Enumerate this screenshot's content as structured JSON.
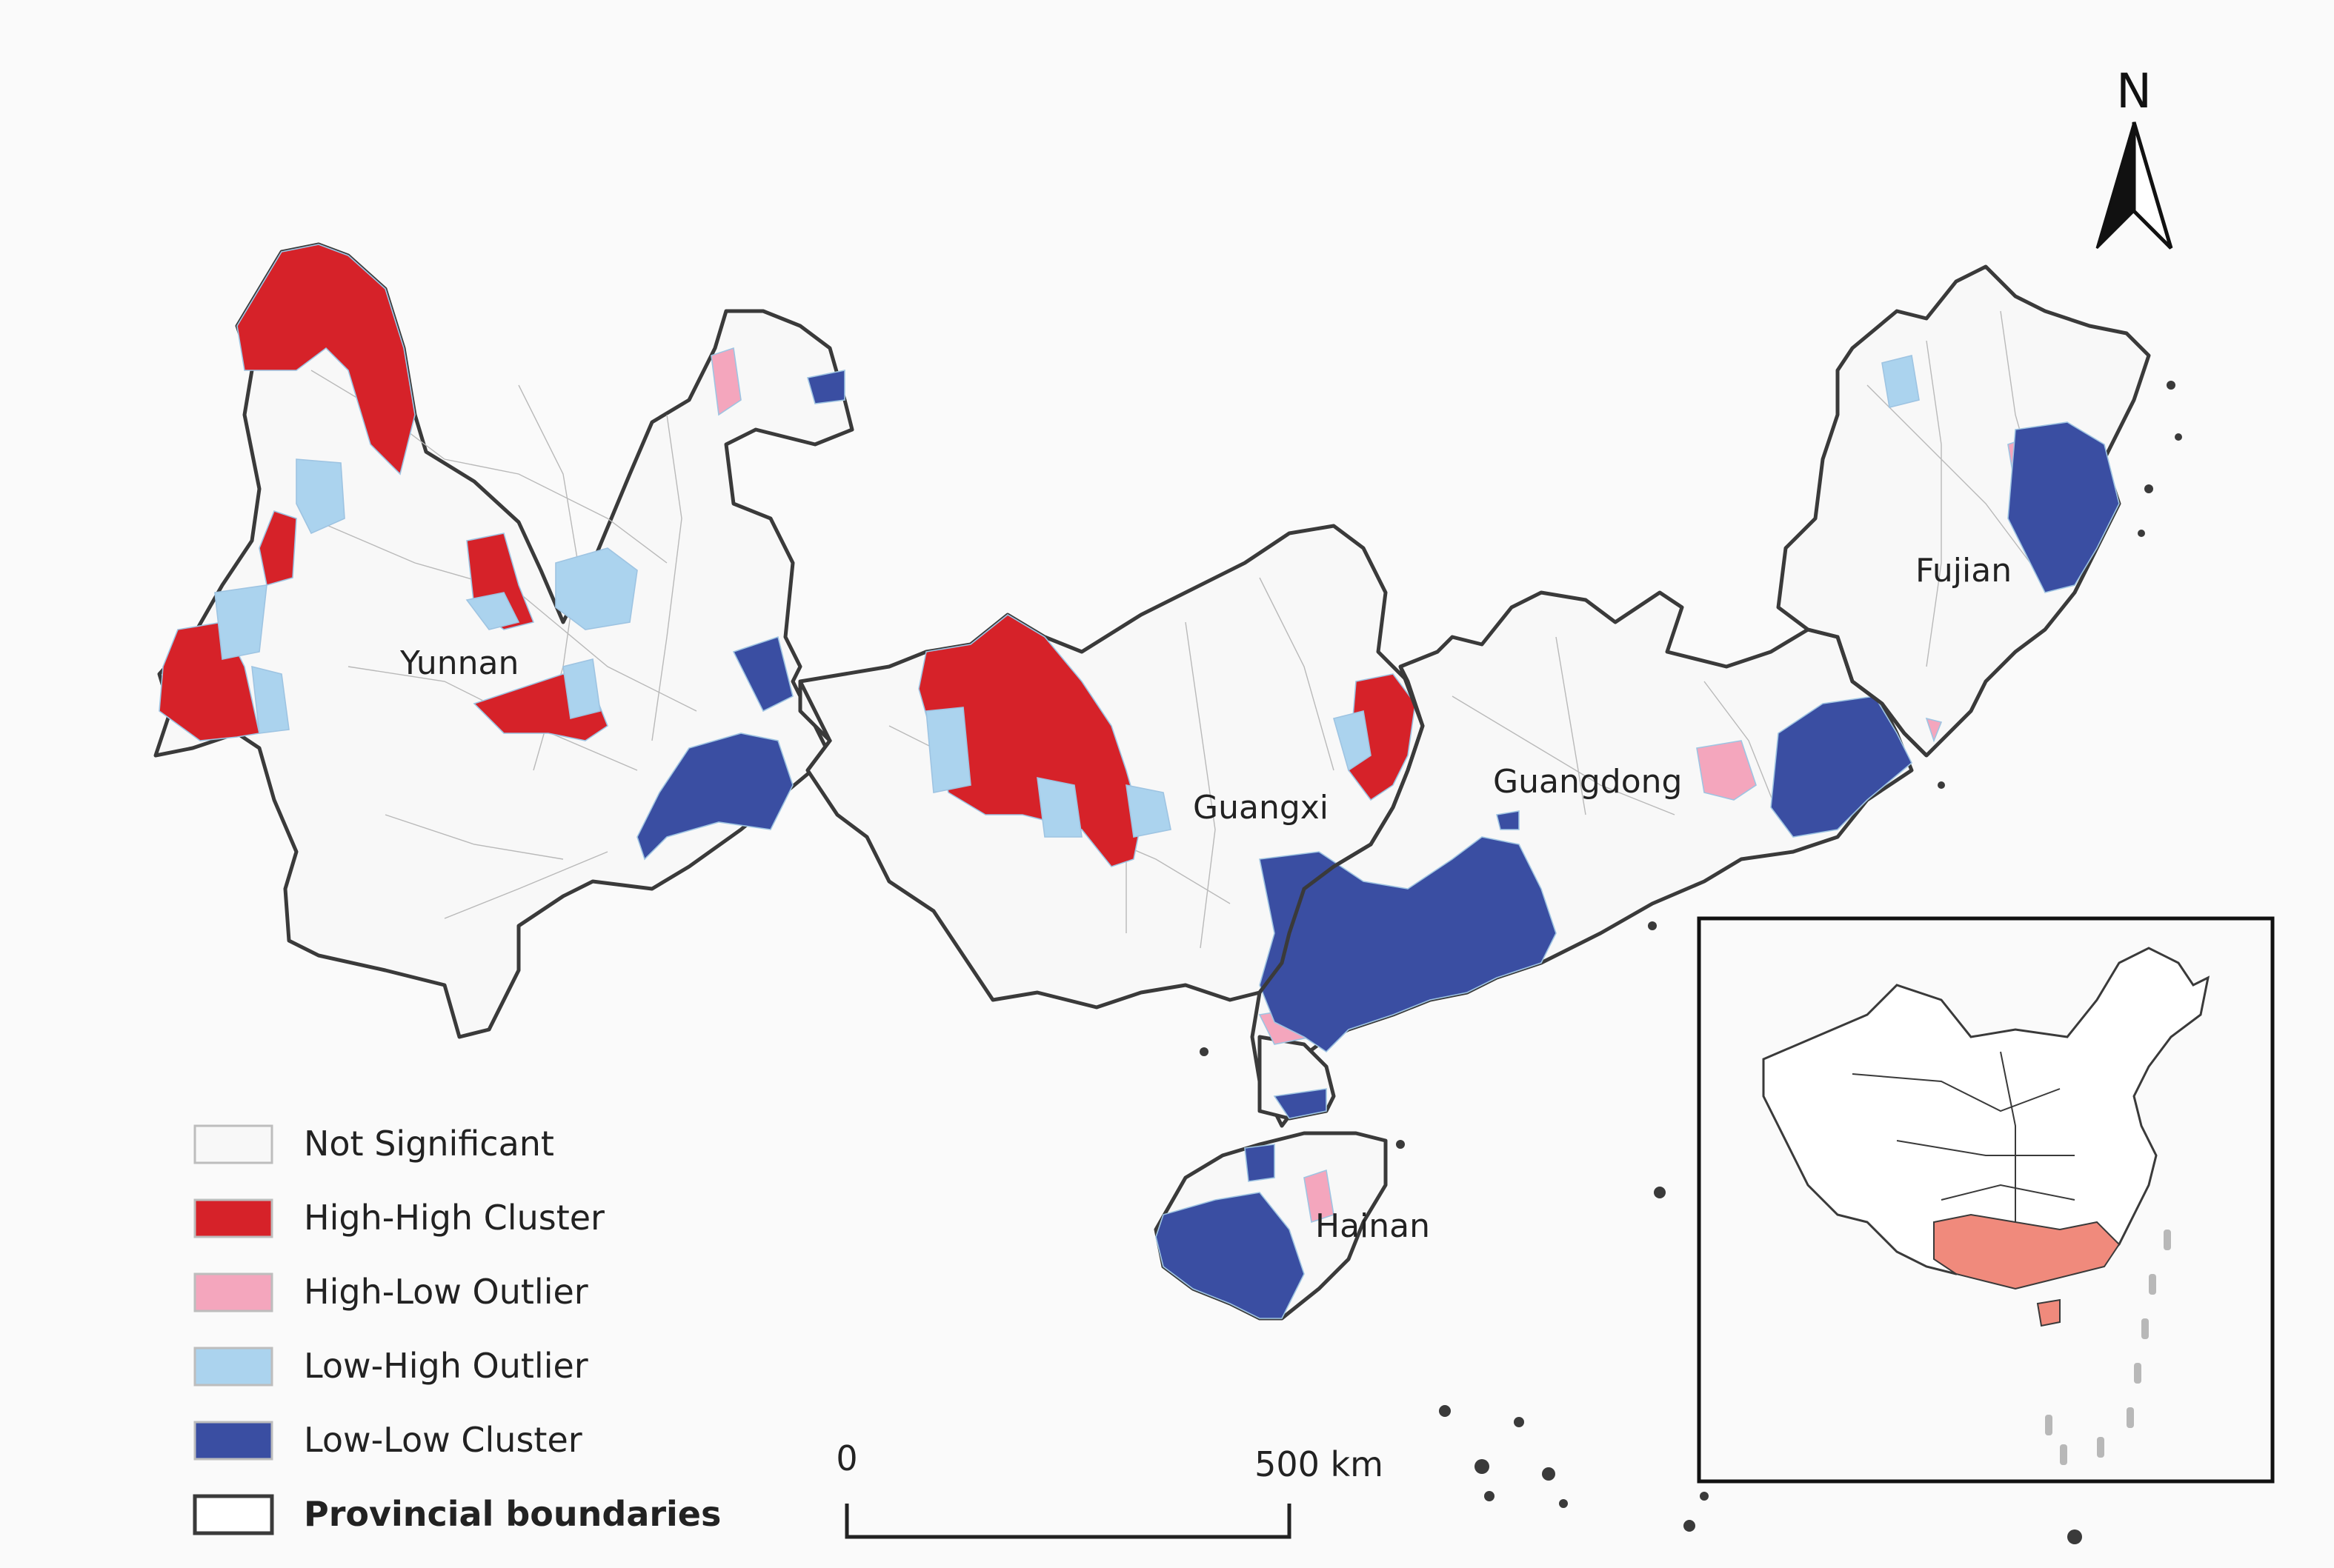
{
  "map": {
    "provinces": [
      "Yunnan",
      "Guangxi",
      "Guangdong",
      "Fujian",
      "Hainan"
    ]
  },
  "legend": {
    "items": [
      {
        "label": "Not Significant",
        "color": "#f8f8f8",
        "bold": false
      },
      {
        "label": "High-High Cluster",
        "color": "#d62229",
        "bold": false
      },
      {
        "label": "High-Low Outlier",
        "color": "#f4a6bd",
        "bold": false
      },
      {
        "label": "Low-High Outlier",
        "color": "#abd3ee",
        "bold": false
      },
      {
        "label": "Low-Low Cluster",
        "color": "#3a4ea2",
        "bold": false
      },
      {
        "label": "Provincial boundaries",
        "color": "#ffffff",
        "bold": true
      }
    ]
  },
  "scale_bar": {
    "start_label": "0",
    "end_label": "500 km"
  },
  "north_arrow": {
    "label": "N"
  },
  "inset": {
    "highlight_color": "#f08a7c"
  },
  "colors": {
    "not_significant": "#f8f8f8",
    "high_high": "#d62229",
    "high_low": "#f4a6bd",
    "low_high": "#abd3ee",
    "low_low": "#3a4ea2",
    "boundary": "#3a3a3a"
  }
}
